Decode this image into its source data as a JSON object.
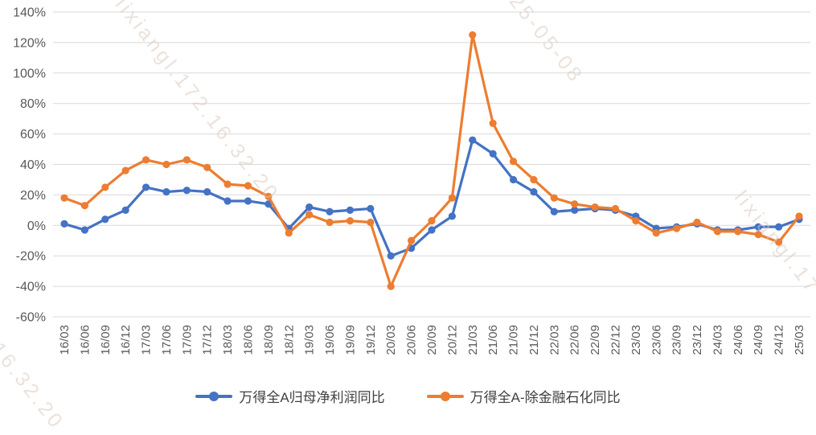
{
  "chart_data": {
    "type": "line",
    "title": "",
    "xlabel": "",
    "ylabel": "",
    "categories": [
      "16/03",
      "16/06",
      "16/09",
      "16/12",
      "17/03",
      "17/06",
      "17/09",
      "17/12",
      "18/03",
      "18/06",
      "18/09",
      "18/12",
      "19/03",
      "19/06",
      "19/09",
      "19/12",
      "20/03",
      "20/06",
      "20/09",
      "20/12",
      "21/03",
      "21/06",
      "21/09",
      "21/12",
      "22/03",
      "22/06",
      "22/09",
      "22/12",
      "23/03",
      "23/06",
      "23/09",
      "23/12",
      "24/03",
      "24/06",
      "24/09",
      "24/12",
      "25/03"
    ],
    "series": [
      {
        "name": "万得全A归母净利润同比",
        "color": "#4472c4",
        "values": [
          1,
          -3,
          4,
          10,
          25,
          22,
          23,
          22,
          16,
          16,
          14,
          -2,
          12,
          9,
          10,
          11,
          -20,
          -15,
          -3,
          6,
          56,
          47,
          30,
          22,
          9,
          10,
          11,
          10,
          6,
          -2,
          -1,
          1,
          -3,
          -3,
          -1,
          -1,
          4
        ]
      },
      {
        "name": "万得全A-除金融石化同比",
        "color": "#ed7d31",
        "values": [
          18,
          13,
          25,
          36,
          43,
          40,
          43,
          38,
          27,
          26,
          19,
          -5,
          7,
          2,
          3,
          2,
          -40,
          -10,
          3,
          18,
          125,
          67,
          42,
          30,
          18,
          14,
          12,
          11,
          3,
          -5,
          -2,
          2,
          -4,
          -4,
          -6,
          -11,
          6
        ]
      }
    ],
    "ylim": [
      -60,
      140
    ],
    "ytick_step": 20,
    "ytick_suffix": "%",
    "grid": true,
    "grid_color": "#d9d9d9",
    "axis_text_color": "#595959",
    "legend_position": "bottom"
  },
  "watermarks": [
    "lixiangl.172.16.32.20",
    "25-05-08",
    "lixiangl.17",
    "2.16.32.20"
  ]
}
